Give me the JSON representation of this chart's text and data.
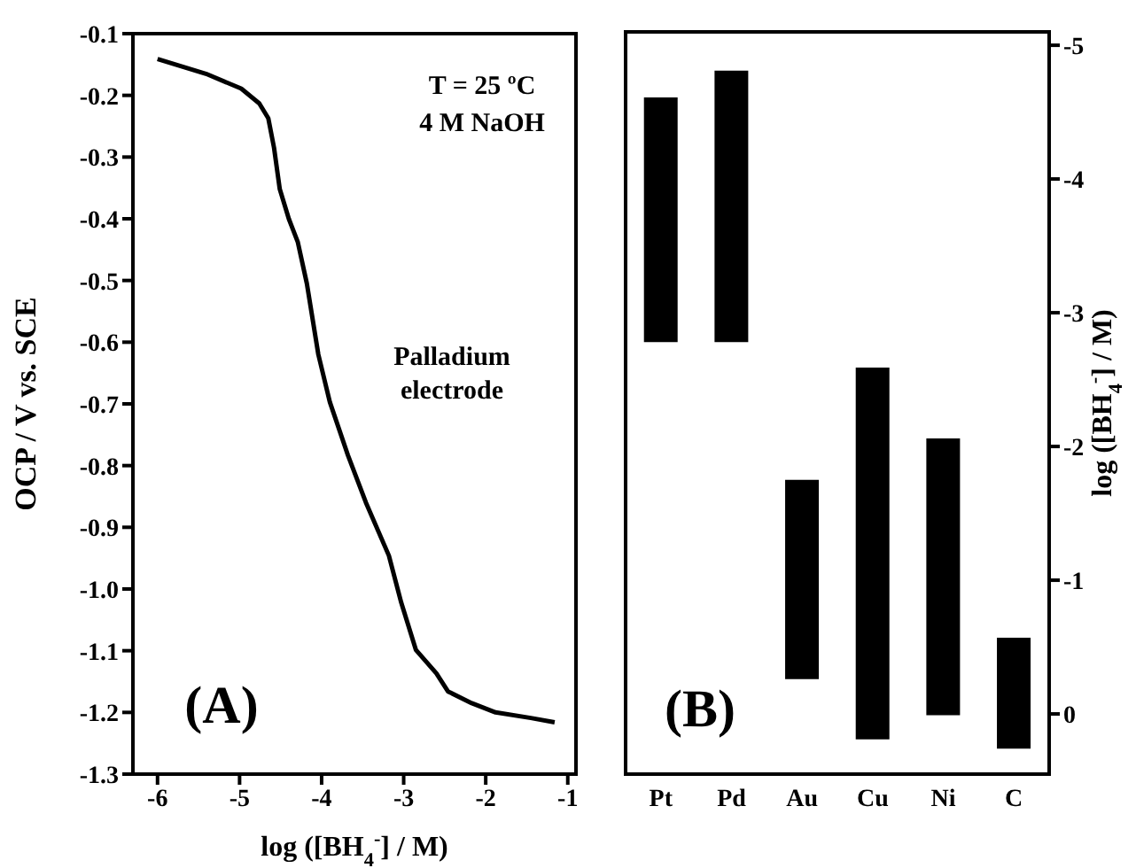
{
  "chart_data": [
    {
      "type": "line",
      "xlabel": "log ([BH$_{4}$$^{-}$] / M)",
      "ylabel": "OCP / V vs. SCE",
      "xlim": [
        -6.3,
        -0.9
      ],
      "xticks": [
        -6,
        -5,
        -4,
        -3,
        -2,
        -1
      ],
      "ylim": [
        -1.3,
        -0.1
      ],
      "yticks": [
        -1.3,
        -1.2,
        -1.1,
        {
          "value": -1.0,
          "label": "-1.0"
        },
        -0.9,
        -0.8,
        -0.7,
        -0.6,
        -0.5,
        -0.4,
        -0.3,
        -0.2,
        -0.1
      ],
      "x": [
        -6,
        -5.41,
        -4.98,
        -4.76,
        -4.65,
        -4.58,
        -4.51,
        -4.4,
        -4.29,
        -4.18,
        -4.04,
        -3.9,
        -3.68,
        -3.46,
        -3.18,
        -3.03,
        -2.85,
        -2.6,
        -2.46,
        -2.17,
        -1.88,
        -1.45,
        -1.16
      ],
      "series": [
        {
          "color": "#000000",
          "values": [
            -0.141,
            -0.165,
            -0.189,
            -0.213,
            -0.237,
            -0.285,
            -0.352,
            -0.4,
            -0.438,
            -0.505,
            -0.62,
            -0.697,
            -0.783,
            -0.86,
            -0.946,
            -1.022,
            -1.099,
            -1.137,
            -1.166,
            -1.185,
            -1.2,
            -1.209,
            -1.216
          ]
        }
      ],
      "annotations": [
        "T = 25 ºC",
        "4 M NaOH",
        "Palladium electrode",
        "(A)"
      ]
    },
    {
      "type": "bar",
      "categories": [
        "Pt",
        "Pd",
        "Au",
        "Cu",
        "Ni",
        "C"
      ],
      "ylabel": "log ([BH$_{4}$$^{-}$] / M)",
      "ylim": [
        0.45,
        -5.1
      ],
      "yticks": [
        0,
        -1,
        -2,
        -3,
        -4,
        -5
      ],
      "series": [
        {
          "color": "#000000",
          "values": [
            1.83,
            2.03,
            1.49,
            2.78,
            2.07,
            0.83
          ],
          "base": [
            -4.61,
            -4.81,
            -1.75,
            -2.59,
            -2.06,
            -0.57
          ]
        }
      ],
      "annotations": [
        "(B)"
      ]
    }
  ]
}
